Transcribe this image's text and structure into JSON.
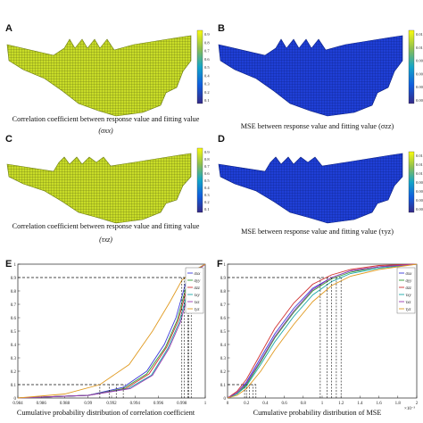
{
  "panels": {
    "A": {
      "label": "A",
      "caption": "Correlation coefficient between response value and fitting value",
      "symbol": "(σxx)",
      "colorbar_ticks": [
        "0.9",
        "0.8",
        "0.7",
        "0.6",
        "0.5",
        "0.4",
        "0.3",
        "0.2",
        "0.1"
      ]
    },
    "B": {
      "label": "B",
      "caption": "MSE between response value and fitting value (σzz)",
      "colorbar_ticks": [
        "0.012",
        "0.01",
        "0.008",
        "0.006",
        "0.004",
        "0.002"
      ]
    },
    "C": {
      "label": "C",
      "caption": "Correlation coefficient between response value and fitting value",
      "symbol": "(τxz)",
      "colorbar_ticks": [
        "0.9",
        "0.8",
        "0.7",
        "0.6",
        "0.5",
        "0.4",
        "0.3",
        "0.2",
        "0.1"
      ]
    },
    "D": {
      "label": "D",
      "caption": "MSE between response value and fitting value (τyz)",
      "colorbar_ticks": [
        "0.014",
        "0.012",
        "0.01",
        "0.008",
        "0.006",
        "0.004",
        "0.002"
      ]
    },
    "E": {
      "label": "E",
      "caption": "Cumulative probability distribution of correlation coefficient"
    },
    "F": {
      "label": "F",
      "caption": "Cumulative probability distribution of MSE"
    }
  },
  "colors": {
    "mesh_yellow": "#c8dc28",
    "mesh_blue": "#1f3fd6"
  },
  "chart_data": [
    {
      "type": "line",
      "panel": "E",
      "xlim": [
        0.984,
        1.0
      ],
      "ylim": [
        0,
        1
      ],
      "xticks": [
        "0.984",
        "0.986",
        "0.988",
        "0.99",
        "0.992",
        "0.994",
        "0.996",
        "0.998",
        "1"
      ],
      "yticks": [
        "0",
        "0.1",
        "0.2",
        "0.3",
        "0.4",
        "0.5",
        "0.6",
        "0.7",
        "0.8",
        "0.9",
        "1"
      ],
      "legend": [
        "σxx",
        "σyy",
        "σzz",
        "τxy",
        "τxz",
        "τyz"
      ],
      "legend_position": "top-right",
      "grid": false,
      "series": [
        {
          "name": "σxx",
          "color": "#3a3ad8",
          "x": [
            0.984,
            0.99,
            0.993,
            0.995,
            0.9965,
            0.9975,
            0.9983,
            0.999,
            1.0
          ],
          "y": [
            0,
            0.02,
            0.08,
            0.2,
            0.4,
            0.6,
            0.85,
            0.95,
            1.0
          ]
        },
        {
          "name": "σyy",
          "color": "#2f9a2f",
          "x": [
            0.984,
            0.99,
            0.993,
            0.995,
            0.9966,
            0.9976,
            0.9984,
            0.9991,
            1.0
          ],
          "y": [
            0,
            0.02,
            0.07,
            0.18,
            0.38,
            0.58,
            0.84,
            0.95,
            1.0
          ]
        },
        {
          "name": "σzz",
          "color": "#d03030",
          "x": [
            0.984,
            0.99,
            0.9932,
            0.9952,
            0.9967,
            0.9977,
            0.9985,
            0.9992,
            1.0
          ],
          "y": [
            0,
            0.02,
            0.07,
            0.18,
            0.38,
            0.58,
            0.84,
            0.95,
            1.0
          ]
        },
        {
          "name": "τxy",
          "color": "#1aa8a8",
          "x": [
            0.984,
            0.99,
            0.9934,
            0.9954,
            0.9968,
            0.9978,
            0.9986,
            0.9992,
            1.0
          ],
          "y": [
            0,
            0.02,
            0.07,
            0.17,
            0.37,
            0.57,
            0.83,
            0.95,
            1.0
          ]
        },
        {
          "name": "τxz",
          "color": "#9a3ab0",
          "x": [
            0.984,
            0.99,
            0.9936,
            0.9955,
            0.9969,
            0.9979,
            0.9987,
            0.9993,
            1.0
          ],
          "y": [
            0,
            0.02,
            0.07,
            0.17,
            0.37,
            0.57,
            0.83,
            0.95,
            1.0
          ]
        },
        {
          "name": "τyz",
          "color": "#e09a20",
          "x": [
            0.984,
            0.988,
            0.991,
            0.9935,
            0.9955,
            0.997,
            0.998,
            0.9992,
            1.0
          ],
          "y": [
            0,
            0.03,
            0.1,
            0.25,
            0.5,
            0.72,
            0.88,
            0.96,
            1.0
          ]
        }
      ],
      "reference_levels": [
        0.1,
        0.9
      ]
    },
    {
      "type": "line",
      "panel": "F",
      "xlim": [
        0,
        2
      ],
      "ylim": [
        0,
        1
      ],
      "x_multiplier": "×10⁻³",
      "xticks": [
        "0",
        "0.2",
        "0.4",
        "0.6",
        "0.8",
        "1",
        "1.2",
        "1.4",
        "1.6",
        "1.8",
        "2"
      ],
      "yticks": [
        "0",
        "0.1",
        "0.2",
        "0.3",
        "0.4",
        "0.5",
        "0.6",
        "0.7",
        "0.8",
        "0.9",
        "1"
      ],
      "legend": [
        "σxx",
        "σyy",
        "σzz",
        "τxy",
        "τxz",
        "τyz"
      ],
      "legend_position": "top-right",
      "grid": false,
      "series": [
        {
          "name": "σxx",
          "color": "#3a3ad8",
          "x": [
            0,
            0.1,
            0.2,
            0.35,
            0.5,
            0.7,
            0.9,
            1.1,
            1.3,
            1.6,
            2.0
          ],
          "y": [
            0,
            0.04,
            0.12,
            0.3,
            0.48,
            0.67,
            0.82,
            0.9,
            0.95,
            0.98,
            1.0
          ]
        },
        {
          "name": "σyy",
          "color": "#2f9a2f",
          "x": [
            0,
            0.1,
            0.2,
            0.35,
            0.5,
            0.7,
            0.9,
            1.1,
            1.3,
            1.6,
            2.0
          ],
          "y": [
            0,
            0.03,
            0.1,
            0.27,
            0.45,
            0.64,
            0.8,
            0.89,
            0.94,
            0.98,
            1.0
          ]
        },
        {
          "name": "σzz",
          "color": "#d03030",
          "x": [
            0,
            0.1,
            0.2,
            0.35,
            0.5,
            0.7,
            0.9,
            1.1,
            1.3,
            1.6,
            2.0
          ],
          "y": [
            0,
            0.05,
            0.14,
            0.33,
            0.52,
            0.71,
            0.85,
            0.92,
            0.96,
            0.99,
            1.0
          ]
        },
        {
          "name": "τxy",
          "color": "#1aa8a8",
          "x": [
            0,
            0.1,
            0.2,
            0.35,
            0.5,
            0.7,
            0.9,
            1.1,
            1.3,
            1.6,
            2.0
          ],
          "y": [
            0,
            0.03,
            0.09,
            0.25,
            0.42,
            0.61,
            0.77,
            0.87,
            0.93,
            0.97,
            1.0
          ]
        },
        {
          "name": "τxz",
          "color": "#9a3ab0",
          "x": [
            0,
            0.1,
            0.2,
            0.35,
            0.5,
            0.7,
            0.9,
            1.1,
            1.3,
            1.6,
            2.0
          ],
          "y": [
            0,
            0.04,
            0.11,
            0.28,
            0.46,
            0.65,
            0.81,
            0.9,
            0.95,
            0.98,
            1.0
          ]
        },
        {
          "name": "τyz",
          "color": "#e09a20",
          "x": [
            0,
            0.1,
            0.2,
            0.35,
            0.5,
            0.7,
            0.9,
            1.1,
            1.3,
            1.6,
            2.0
          ],
          "y": [
            0,
            0.02,
            0.07,
            0.2,
            0.36,
            0.55,
            0.72,
            0.84,
            0.91,
            0.96,
            1.0
          ]
        }
      ],
      "reference_levels": [
        0.1,
        0.9
      ]
    }
  ]
}
